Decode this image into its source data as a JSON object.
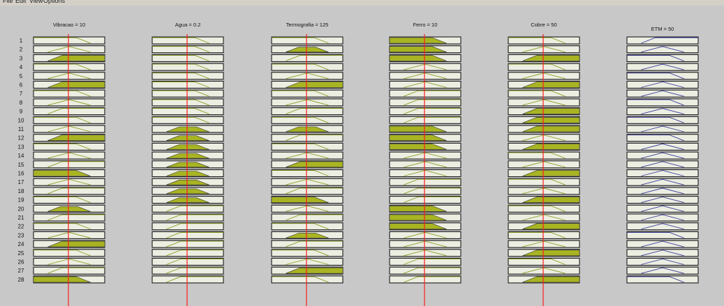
{
  "window": {
    "menu": [
      "File",
      "Edit",
      "View",
      "Options"
    ]
  },
  "rule_viewer": {
    "rule_numbers": [
      "1",
      "2",
      "3",
      "4",
      "5",
      "6",
      "7",
      "8",
      "9",
      "10",
      "11",
      "12",
      "13",
      "14",
      "15",
      "16",
      "17",
      "18",
      "19",
      "20",
      "21",
      "22",
      "23",
      "24",
      "25",
      "26",
      "27",
      "28"
    ],
    "input_rule_count": 28,
    "columns": [
      {
        "title": "Vibracao = 10",
        "value": 10,
        "kind": "input",
        "rules": [
          "l",
          "m",
          "h",
          "l",
          "m",
          "h",
          "l",
          "m",
          "h",
          "l",
          "m",
          "h",
          "l",
          "m",
          "h",
          "l",
          "m",
          "h",
          "l",
          "m",
          "h",
          "l",
          "m",
          "h",
          "l",
          "m",
          "h",
          "l"
        ],
        "fired": [
          false,
          false,
          true,
          false,
          false,
          true,
          false,
          false,
          false,
          false,
          false,
          true,
          false,
          false,
          false,
          true,
          false,
          false,
          false,
          true,
          false,
          false,
          false,
          true,
          false,
          false,
          false,
          true
        ]
      },
      {
        "title": "Agua = 0.2",
        "value": 0.2,
        "kind": "input",
        "rules": [
          "l",
          "l",
          "l",
          "l",
          "l",
          "l",
          "l",
          "l",
          "l",
          "l",
          "m",
          "m",
          "m",
          "m",
          "m",
          "m",
          "m",
          "m",
          "m",
          "h",
          "h",
          "h",
          "h",
          "h",
          "h",
          "h",
          "h",
          "h"
        ],
        "fired": [
          false,
          false,
          false,
          false,
          false,
          false,
          false,
          false,
          false,
          false,
          true,
          true,
          true,
          true,
          true,
          true,
          true,
          true,
          true,
          false,
          false,
          false,
          false,
          false,
          false,
          false,
          false,
          false
        ]
      },
      {
        "title": "Termografia = 125",
        "value": 125,
        "kind": "input",
        "rules": [
          "l",
          "m",
          "h",
          "l",
          "m",
          "h",
          "l",
          "m",
          "h",
          "l",
          "m",
          "h",
          "l",
          "m",
          "h",
          "l",
          "m",
          "h",
          "l",
          "m",
          "h",
          "l",
          "m",
          "h",
          "l",
          "m",
          "h",
          "l"
        ],
        "fired": [
          false,
          true,
          false,
          false,
          false,
          true,
          false,
          false,
          false,
          false,
          true,
          false,
          false,
          false,
          true,
          false,
          false,
          false,
          true,
          false,
          false,
          false,
          true,
          false,
          false,
          false,
          true,
          false
        ]
      },
      {
        "title": "Ferro = 10",
        "value": 10,
        "kind": "input",
        "rules": [
          "l",
          "l",
          "l",
          "m",
          "m",
          "m",
          "h",
          "h",
          "h",
          "h",
          "l",
          "l",
          "l",
          "m",
          "m",
          "m",
          "h",
          "h",
          "h",
          "l",
          "l",
          "l",
          "m",
          "m",
          "m",
          "h",
          "h",
          "h"
        ],
        "fired": [
          true,
          true,
          true,
          false,
          false,
          false,
          false,
          false,
          false,
          false,
          true,
          true,
          true,
          false,
          false,
          false,
          false,
          false,
          false,
          true,
          true,
          true,
          false,
          false,
          false,
          false,
          false,
          false
        ]
      },
      {
        "title": "Cobre = 50",
        "value": 50,
        "kind": "input",
        "rules": [
          "l",
          "m",
          "h",
          "l",
          "m",
          "h",
          "l",
          "m",
          "h",
          "h",
          "h",
          "m",
          "h",
          "l",
          "m",
          "h",
          "l",
          "m",
          "h",
          "l",
          "m",
          "h",
          "l",
          "m",
          "h",
          "l",
          "m",
          "h"
        ],
        "fired": [
          false,
          false,
          true,
          false,
          false,
          true,
          false,
          false,
          true,
          true,
          true,
          false,
          true,
          false,
          false,
          true,
          false,
          false,
          true,
          false,
          false,
          true,
          false,
          false,
          true,
          false,
          false,
          true
        ]
      },
      {
        "title": "ETM = 50",
        "value": 50,
        "kind": "output",
        "rules": [
          "h",
          "m",
          "l",
          "m",
          "l",
          "m",
          "m",
          "l",
          "m",
          "l",
          "m",
          "l",
          "m",
          "m",
          "m",
          "m",
          "m",
          "m",
          "m",
          "m",
          "m",
          "m",
          "l",
          "m",
          "m",
          "m",
          "m",
          "l"
        ],
        "fired": []
      }
    ]
  },
  "colors": {
    "background": "#c8c8c8",
    "box_fill": "#eceee2",
    "box_border": "#1a1a1a",
    "mf_fill": "#a8b422",
    "mf_line": "#8f9c22",
    "output_line": "#3a3a9a",
    "indicator_line": "#ff1a1a"
  }
}
